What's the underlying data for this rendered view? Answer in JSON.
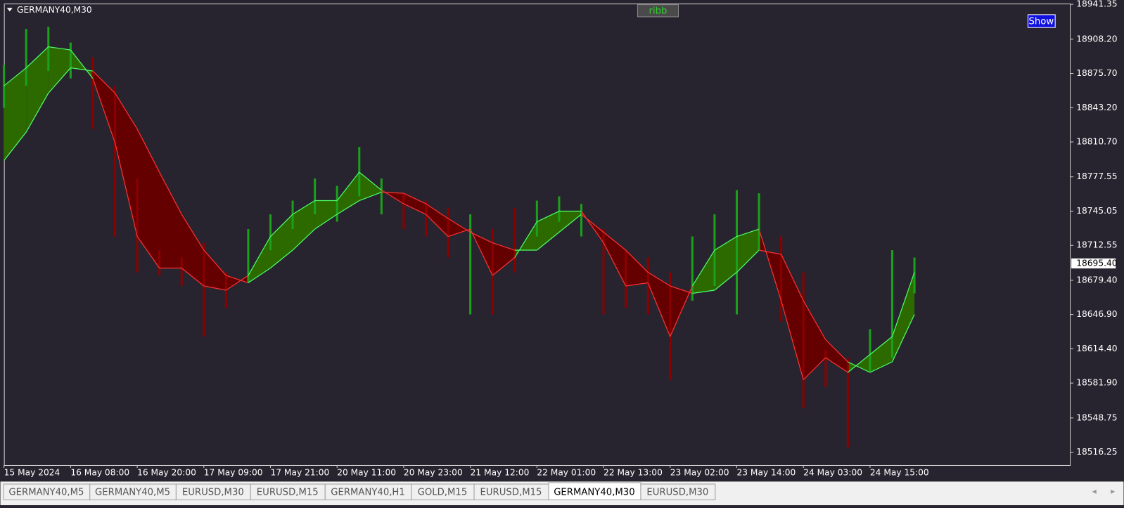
{
  "chart_data": {
    "type": "ribbon",
    "title": "GERMANY40,M30",
    "categories": [
      "15 May 2024",
      null,
      null,
      "16 May 08:00",
      null,
      null,
      "16 May 20:00",
      null,
      null,
      "17 May 09:00",
      null,
      null,
      "17 May 21:00",
      null,
      null,
      "20 May 11:00",
      null,
      null,
      "20 May 23:00",
      null,
      null,
      "21 May 12:00",
      null,
      null,
      "22 May 01:00",
      null,
      null,
      "22 May 13:00",
      null,
      null,
      "23 May 02:00",
      null,
      null,
      "23 May 14:00",
      null,
      null,
      "24 May 03:00",
      null,
      null,
      "24 May 15:00",
      null,
      null,
      null,
      null,
      null,
      null,
      null,
      null
    ],
    "fast": [
      18864,
      18881,
      18901,
      18898,
      18871,
      18810,
      18721,
      18691,
      18691,
      18674,
      18670,
      18684,
      18721,
      18742,
      18755,
      18755,
      18782,
      18765,
      18752,
      18742,
      18721,
      18728,
      18684,
      18701,
      18735,
      18745,
      18745,
      18715,
      18674,
      18677,
      18626,
      18674,
      18708,
      18721,
      18728,
      18660,
      18585,
      18606,
      18592,
      18609,
      18626,
      18687,
      null,
      null,
      null,
      null,
      null,
      null
    ],
    "slow": [
      18793,
      18820,
      18857,
      18881,
      18878,
      18857,
      18823,
      18782,
      18742,
      18708,
      18684,
      18677,
      18691,
      18708,
      18728,
      18742,
      18755,
      18763,
      18762,
      18752,
      18738,
      18725,
      18715,
      18708,
      18708,
      18725,
      18742,
      18725,
      18708,
      18687,
      18674,
      18667,
      18670,
      18687,
      18708,
      18704,
      18660,
      18623,
      18602,
      18592,
      18602,
      18647,
      null,
      null,
      null,
      null,
      null,
      null
    ],
    "high": [
      18884,
      18918,
      18920,
      18905,
      18891,
      18864,
      18776,
      18708,
      18701,
      18715,
      18687,
      18728,
      18742,
      18755,
      18776,
      18769,
      18806,
      18776,
      18762,
      18755,
      18748,
      18742,
      18728,
      18748,
      18755,
      18759,
      18752,
      18728,
      18708,
      18701,
      18687,
      18721,
      18742,
      18765,
      18762,
      18721,
      18687,
      18613,
      18606,
      18633,
      18708,
      18701,
      null,
      null,
      null,
      null,
      null,
      null
    ],
    "low": [
      18843,
      18864,
      18878,
      18871,
      18823,
      18721,
      18687,
      18684,
      18674,
      18626,
      18653,
      18677,
      18708,
      18728,
      18742,
      18735,
      18759,
      18742,
      18728,
      18721,
      18701,
      18647,
      18647,
      18687,
      18721,
      18735,
      18721,
      18647,
      18653,
      18647,
      18585,
      18660,
      18674,
      18647,
      18708,
      18640,
      18558,
      18578,
      18521,
      18592,
      18606,
      18667,
      null,
      null,
      null,
      null,
      null,
      null
    ],
    "up_color": "#2c6a00",
    "down_color": "#650000",
    "up_line": "#4cff6a",
    "down_line": "#ff3030",
    "up_bar": "#1aa01a",
    "down_bar": "#8b0000",
    "ylim": [
      18504,
      18942
    ],
    "yticks": [
      18941.35,
      {
        "value": 18908.2,
        "label": "18908.20"
      },
      {
        "value": 18875.7,
        "label": "18875.70"
      },
      {
        "value": 18843.2,
        "label": "18843.20"
      },
      {
        "value": 18810.7,
        "label": "18810.70"
      },
      18777.55,
      18745.05,
      18712.55,
      {
        "value": 18679.4,
        "label": "18679.40"
      },
      {
        "value": 18646.9,
        "label": "18646.90"
      },
      {
        "value": 18614.4,
        "label": "18614.40"
      },
      {
        "value": 18581.9,
        "label": "18581.90"
      },
      18548.75,
      18516.25
    ],
    "last_price": {
      "value": 18695.4,
      "label": "18695.40"
    }
  },
  "ui": {
    "indicator_button": "ribb",
    "show_button": "Show",
    "tabs": [
      "GERMANY40,M5",
      "GERMANY40,M5",
      "EURUSD,M30",
      "EURUSD,M15",
      "GERMANY40,H1",
      "GOLD,M15",
      "EURUSD,M15",
      "GERMANY40,M30",
      "EURUSD,M30"
    ],
    "active_tab": 7
  }
}
